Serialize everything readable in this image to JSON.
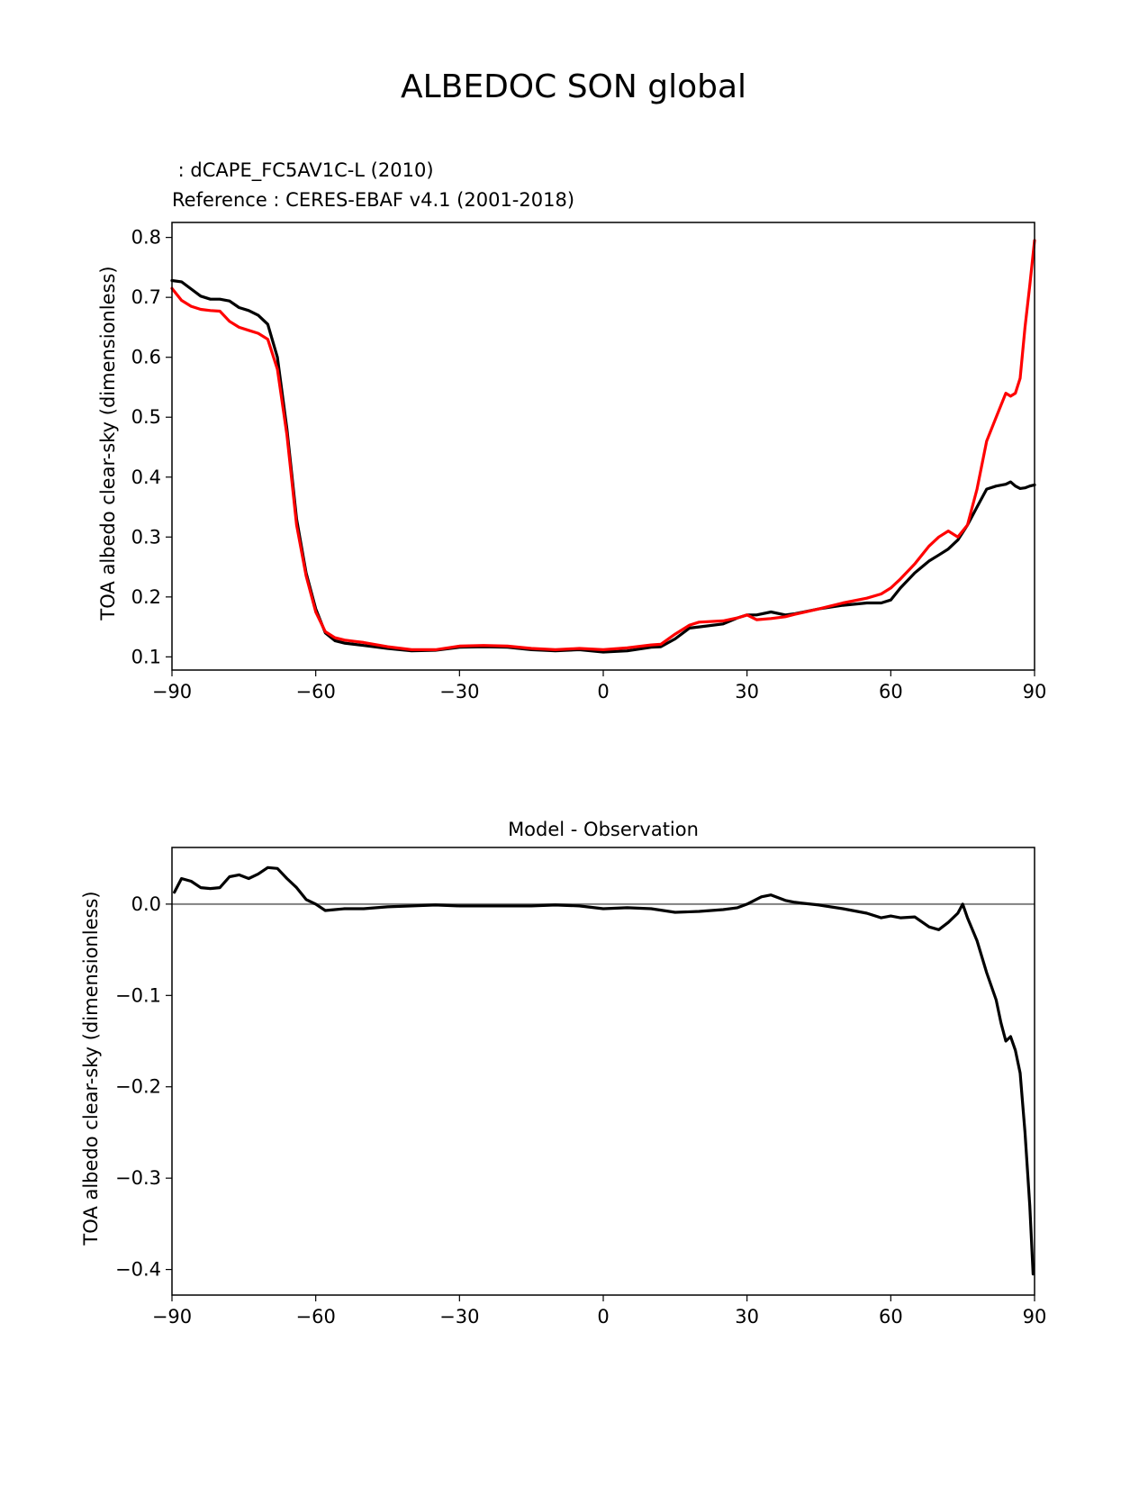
{
  "figure": {
    "suptitle": "ALBEDOC SON global",
    "test_label": " : dCAPE_FC5AV1C-L (2010)",
    "ref_label": "Reference : CERES-EBAF v4.1 (2001-2018)",
    "colors": {
      "test": "#000000",
      "ref": "#ff0000",
      "zero_line": "#808080"
    }
  },
  "chart_data": [
    {
      "type": "line",
      "title": "",
      "xlabel": "",
      "ylabel": "TOA albedo clear-sky (dimensionless)",
      "xlim": [
        -90,
        90
      ],
      "ylim": [
        0.078,
        0.825
      ],
      "xticks": [
        -90,
        -60,
        -30,
        0,
        30,
        60,
        90
      ],
      "xtick_labels": [
        "−90",
        "−60",
        "−30",
        "0",
        "30",
        "60",
        "90"
      ],
      "yticks": [
        0.1,
        0.2,
        0.3,
        0.4,
        0.5,
        0.6,
        0.7,
        0.8
      ],
      "ytick_labels": [
        "0.1",
        "0.2",
        "0.3",
        "0.4",
        "0.5",
        "0.6",
        "0.7",
        "0.8"
      ],
      "x": [
        -90,
        -88,
        -86,
        -84,
        -82,
        -80,
        -78,
        -76,
        -74,
        -72,
        -70,
        -68,
        -66,
        -64,
        -62,
        -60,
        -58,
        -56,
        -54,
        -52,
        -50,
        -45,
        -40,
        -35,
        -30,
        -25,
        -20,
        -15,
        -10,
        -5,
        0,
        5,
        10,
        12,
        15,
        18,
        20,
        25,
        28,
        30,
        32,
        35,
        38,
        40,
        45,
        50,
        55,
        58,
        60,
        62,
        65,
        68,
        70,
        72,
        74,
        76,
        78,
        80,
        82,
        84,
        85,
        86,
        87,
        88,
        89,
        90
      ],
      "series": [
        {
          "values": [
            0.728,
            0.726,
            0.714,
            0.702,
            0.697,
            0.697,
            0.694,
            0.683,
            0.678,
            0.67,
            0.655,
            0.6,
            0.48,
            0.33,
            0.24,
            0.18,
            0.14,
            0.127,
            0.123,
            0.121,
            0.119,
            0.114,
            0.11,
            0.111,
            0.116,
            0.117,
            0.116,
            0.112,
            0.11,
            0.112,
            0.108,
            0.11,
            0.116,
            0.117,
            0.13,
            0.148,
            0.15,
            0.155,
            0.165,
            0.17,
            0.17,
            0.175,
            0.17,
            0.172,
            0.18,
            0.186,
            0.19,
            0.19,
            0.195,
            0.215,
            0.24,
            0.26,
            0.27,
            0.28,
            0.295,
            0.32,
            0.35,
            0.38,
            0.385,
            0.388,
            0.392,
            0.385,
            0.381,
            0.382,
            0.385,
            0.387
          ]
        },
        {
          "values": [
            0.715,
            0.695,
            0.685,
            0.68,
            0.678,
            0.677,
            0.66,
            0.65,
            0.645,
            0.64,
            0.63,
            0.58,
            0.47,
            0.32,
            0.235,
            0.175,
            0.142,
            0.132,
            0.128,
            0.126,
            0.124,
            0.117,
            0.112,
            0.112,
            0.118,
            0.119,
            0.118,
            0.114,
            0.112,
            0.114,
            0.112,
            0.115,
            0.12,
            0.121,
            0.138,
            0.153,
            0.158,
            0.16,
            0.165,
            0.17,
            0.162,
            0.164,
            0.167,
            0.171,
            0.18,
            0.19,
            0.198,
            0.205,
            0.215,
            0.23,
            0.255,
            0.285,
            0.3,
            0.31,
            0.3,
            0.32,
            0.38,
            0.46,
            0.5,
            0.54,
            0.535,
            0.54,
            0.565,
            0.65,
            0.72,
            0.795
          ]
        }
      ]
    },
    {
      "type": "line",
      "title": "Model - Observation",
      "xlabel": "",
      "ylabel": "TOA albedo clear-sky (dimensionless)",
      "xlim": [
        -90,
        90
      ],
      "ylim": [
        -0.428,
        0.062
      ],
      "xticks": [
        -90,
        -60,
        -30,
        0,
        30,
        60,
        90
      ],
      "xtick_labels": [
        "−90",
        "−60",
        "−30",
        "0",
        "30",
        "60",
        "90"
      ],
      "yticks": [
        0.0,
        -0.1,
        -0.2,
        -0.3,
        -0.4
      ],
      "ytick_labels": [
        "0.0",
        "−0.1",
        "−0.2",
        "−0.3",
        "−0.4"
      ],
      "hline": 0,
      "x": [
        -89.5,
        -88,
        -86,
        -84,
        -82,
        -80,
        -78,
        -76,
        -74,
        -72,
        -70,
        -68,
        -66,
        -64,
        -62,
        -60,
        -58,
        -56,
        -54,
        -52,
        -50,
        -45,
        -40,
        -35,
        -30,
        -25,
        -20,
        -15,
        -10,
        -5,
        0,
        5,
        10,
        15,
        20,
        25,
        28,
        30,
        33,
        35,
        38,
        40,
        45,
        50,
        55,
        58,
        60,
        62,
        65,
        68,
        70,
        72,
        74,
        75,
        76,
        78,
        80,
        82,
        83,
        84,
        85,
        86,
        87,
        88,
        89,
        89.7
      ],
      "series": [
        {
          "values": [
            0.013,
            0.028,
            0.025,
            0.018,
            0.017,
            0.018,
            0.03,
            0.032,
            0.028,
            0.033,
            0.04,
            0.039,
            0.028,
            0.018,
            0.005,
            0.0,
            -0.007,
            -0.006,
            -0.005,
            -0.005,
            -0.005,
            -0.003,
            -0.002,
            -0.001,
            -0.002,
            -0.002,
            -0.002,
            -0.002,
            -0.001,
            -0.002,
            -0.005,
            -0.004,
            -0.005,
            -0.009,
            -0.008,
            -0.006,
            -0.004,
            0.0,
            0.008,
            0.01,
            0.004,
            0.002,
            -0.001,
            -0.005,
            -0.01,
            -0.015,
            -0.013,
            -0.015,
            -0.014,
            -0.025,
            -0.028,
            -0.02,
            -0.01,
            0.0,
            -0.015,
            -0.04,
            -0.075,
            -0.105,
            -0.13,
            -0.15,
            -0.145,
            -0.16,
            -0.185,
            -0.25,
            -0.33,
            -0.405
          ]
        }
      ]
    }
  ]
}
